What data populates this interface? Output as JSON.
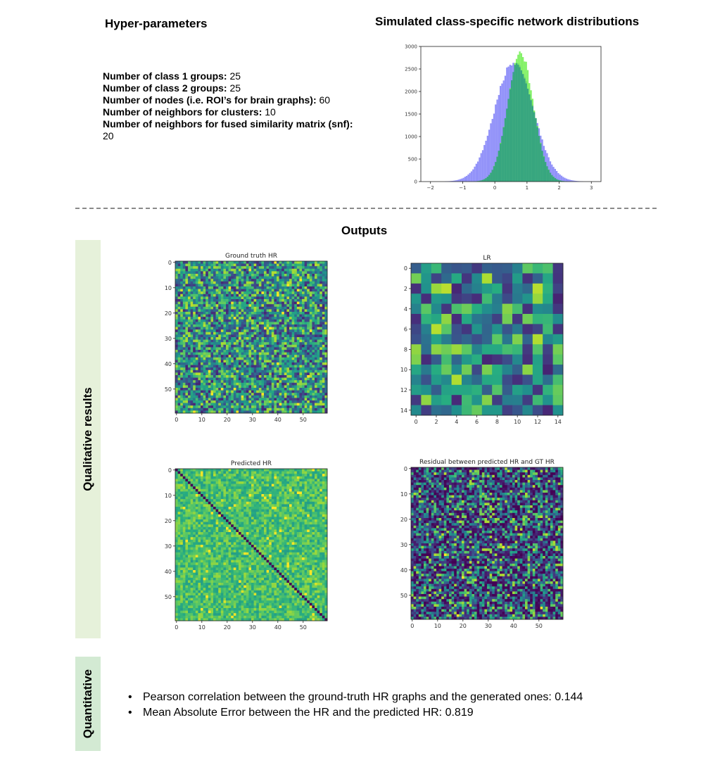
{
  "hyper": {
    "title": "Hyper-parameters",
    "items": [
      {
        "label": "Number of class 1 groups:",
        "value": " 25"
      },
      {
        "label": "Number of class 2 groups:",
        "value": " 25"
      },
      {
        "label": "Number of nodes (i.e. ROI’s for brain graphs):",
        "value": " 60"
      },
      {
        "label": "Number of neighbors for clusters:",
        "value": " 10"
      },
      {
        "label": "Number of neighbors for fused similarity matrix (snf):",
        "value": " 20"
      }
    ]
  },
  "dist": {
    "title": "Simulated class-specific network distributions"
  },
  "outputs": {
    "title": "Outputs"
  },
  "side_labels": {
    "qualitative": "Qualitative results",
    "quantitative": "Quantitative"
  },
  "quant": {
    "items": [
      "Pearson correlation between the ground-truth HR graphs and the generated ones: 0.144",
      "Mean Absolute Error between the HR and the predicted HR: 0.819"
    ]
  },
  "heatmaps": {
    "gt": {
      "title": "Ground truth HR",
      "n": 60,
      "ticks": [
        "0",
        "10",
        "20",
        "30",
        "40",
        "50"
      ],
      "colormap": "viridis",
      "pattern": "random"
    },
    "lr": {
      "title": "LR",
      "n": 15,
      "ticks": [
        "0",
        "2",
        "4",
        "6",
        "8",
        "10",
        "12",
        "14"
      ],
      "colormap": "viridis",
      "pattern": "random"
    },
    "pred": {
      "title": "Predicted HR",
      "n": 60,
      "ticks": [
        "0",
        "10",
        "20",
        "30",
        "40",
        "50"
      ],
      "colormap": "viridis",
      "pattern": "diagonal-dark"
    },
    "res": {
      "title": "Residual between predicted HR and GT HR",
      "n": 60,
      "ticks": [
        "0",
        "10",
        "20",
        "30",
        "40",
        "50"
      ],
      "colormap": "viridis",
      "pattern": "mostly-low"
    }
  },
  "chart_data": {
    "type": "bar",
    "title": "",
    "xlabel": "",
    "ylabel": "",
    "xlim": [
      -2.3,
      3.3
    ],
    "ylim": [
      0,
      3000
    ],
    "x_ticks": [
      "−2",
      "−1",
      "0",
      "1",
      "2",
      "3"
    ],
    "y_ticks": [
      "0",
      "500",
      "1000",
      "1500",
      "2000",
      "2500",
      "3000"
    ],
    "bin_width": 0.05,
    "series": [
      {
        "color": "#7f7ff8",
        "distribution": "normal",
        "mean": 0.6,
        "std": 0.6,
        "peak": 2650
      },
      {
        "color": "#66ee44",
        "distribution": "normal",
        "mean": 0.8,
        "std": 0.4,
        "peak": 2850
      }
    ],
    "overlap_color": "#2e9c84"
  }
}
